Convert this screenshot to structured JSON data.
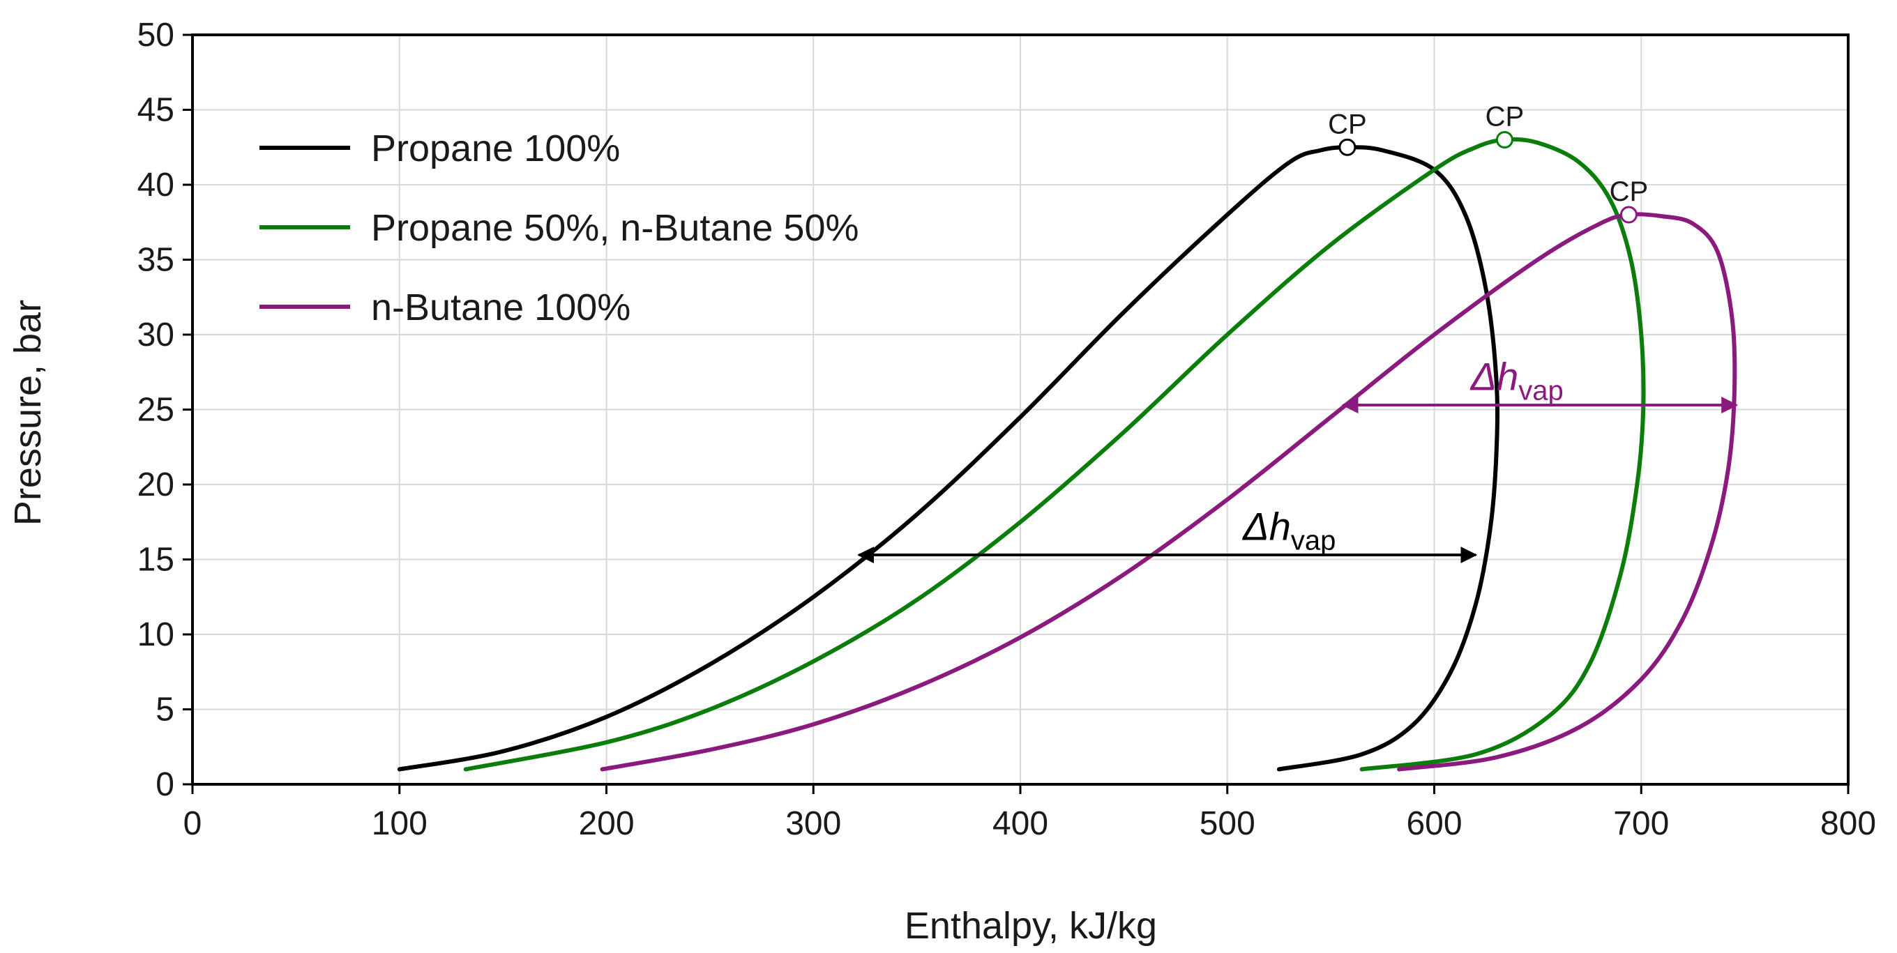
{
  "chart_data": {
    "type": "line",
    "title": "",
    "xlabel": "Enthalpy, kJ/kg",
    "ylabel": "Pressure, bar",
    "xlim": [
      0,
      800
    ],
    "ylim": [
      0,
      50
    ],
    "xticks": [
      0,
      100,
      200,
      300,
      400,
      500,
      600,
      700,
      800
    ],
    "yticks": [
      0,
      5,
      10,
      15,
      20,
      25,
      30,
      35,
      40,
      45,
      50
    ],
    "grid": true,
    "legend_position": "top-left",
    "series": [
      {
        "name": "Propane 100%",
        "color": "#000000",
        "critical_point": {
          "x": 558,
          "y": 42.5,
          "label": "CP"
        },
        "points": [
          [
            100,
            1
          ],
          [
            150,
            2.2
          ],
          [
            200,
            4.5
          ],
          [
            250,
            8
          ],
          [
            300,
            12.5
          ],
          [
            350,
            18
          ],
          [
            400,
            24.5
          ],
          [
            450,
            31.5
          ],
          [
            500,
            38
          ],
          [
            530,
            41.5
          ],
          [
            545,
            42.3
          ],
          [
            558,
            42.5
          ],
          [
            575,
            42.3
          ],
          [
            600,
            41
          ],
          [
            615,
            38
          ],
          [
            625,
            33
          ],
          [
            630,
            27
          ],
          [
            630,
            22
          ],
          [
            627,
            17
          ],
          [
            620,
            12
          ],
          [
            608,
            7.5
          ],
          [
            590,
            4
          ],
          [
            565,
            2
          ],
          [
            525,
            1
          ]
        ]
      },
      {
        "name": "Propane 50%, n-Butane 50%",
        "color": "#0a7d0a",
        "critical_point": {
          "x": 634,
          "y": 43,
          "label": "CP"
        },
        "points": [
          [
            132,
            1
          ],
          [
            200,
            2.8
          ],
          [
            250,
            5
          ],
          [
            300,
            8.2
          ],
          [
            350,
            12.3
          ],
          [
            400,
            17.5
          ],
          [
            450,
            23.5
          ],
          [
            500,
            30
          ],
          [
            550,
            36
          ],
          [
            600,
            41
          ],
          [
            620,
            42.5
          ],
          [
            634,
            43
          ],
          [
            650,
            42.8
          ],
          [
            670,
            41.5
          ],
          [
            685,
            39
          ],
          [
            695,
            35
          ],
          [
            700,
            30
          ],
          [
            701,
            25
          ],
          [
            698,
            20
          ],
          [
            690,
            14
          ],
          [
            675,
            8
          ],
          [
            655,
            4.5
          ],
          [
            620,
            2
          ],
          [
            565,
            1
          ]
        ]
      },
      {
        "name": "n-Butane 100%",
        "color": "#8b1a7e",
        "critical_point": {
          "x": 694,
          "y": 38,
          "label": "CP"
        },
        "points": [
          [
            198,
            1
          ],
          [
            250,
            2.3
          ],
          [
            300,
            4
          ],
          [
            350,
            6.5
          ],
          [
            400,
            9.8
          ],
          [
            450,
            14
          ],
          [
            500,
            19
          ],
          [
            550,
            24.5
          ],
          [
            600,
            30
          ],
          [
            650,
            35
          ],
          [
            680,
            37.4
          ],
          [
            694,
            38
          ],
          [
            710,
            37.9
          ],
          [
            725,
            37.4
          ],
          [
            737,
            35.5
          ],
          [
            744,
            31
          ],
          [
            745,
            26
          ],
          [
            742,
            21
          ],
          [
            734,
            16
          ],
          [
            720,
            11
          ],
          [
            700,
            7
          ],
          [
            670,
            3.8
          ],
          [
            630,
            1.8
          ],
          [
            583,
            1
          ]
        ]
      }
    ],
    "annotations": [
      {
        "label_main": "Δh",
        "label_sub": "vap",
        "color": "#000000",
        "x_start": 322,
        "x_end": 620,
        "y": 15.3,
        "label_x": 530,
        "label_y": 16.3
      },
      {
        "label_main": "Δh",
        "label_sub": "vap",
        "color": "#8b1a7e",
        "x_start": 556,
        "x_end": 746,
        "y": 25.3,
        "label_x": 640,
        "label_y": 26.3
      }
    ]
  }
}
